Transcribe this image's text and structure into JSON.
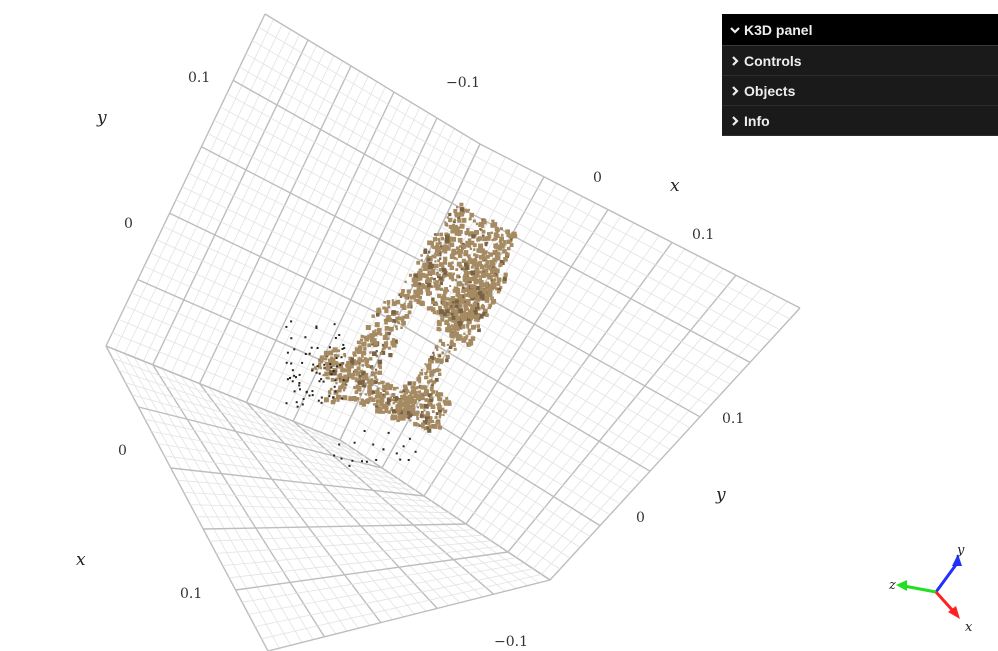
{
  "panel": {
    "title": "K3D panel",
    "items": [
      {
        "label": "Controls"
      },
      {
        "label": "Objects"
      },
      {
        "label": "Info"
      }
    ]
  },
  "axes": {
    "tick_labels": {
      "top_left_0_1": "0.1",
      "top_mid_neg_0_1": "−0.1",
      "left_0": "0",
      "mid_right_0": "0",
      "right_0_1_x": "0.1",
      "right_0_1_y": "0.1",
      "bottom_left_0": "0",
      "bottom_right_0": "0",
      "bottom_0_1": "0.1",
      "bottom_neg_0_1": "−0.1"
    },
    "axis_names": {
      "y_top_left": "y",
      "x_top_right": "x",
      "x_bottom_left": "x",
      "y_bottom_right": "y"
    }
  },
  "gizmo": {
    "x_label": "x",
    "y_label": "y",
    "z_label": "z",
    "x_color": "#ff2020",
    "y_color": "#2030ff",
    "z_color": "#20e020"
  },
  "pointcloud": {
    "color": "#a58a62",
    "shade_color": "#7a6244",
    "dark_color": "#2b231a"
  }
}
